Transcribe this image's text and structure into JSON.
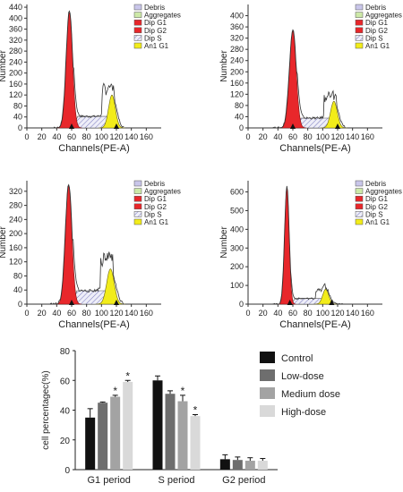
{
  "chart_data": [
    {
      "type": "area",
      "panel": "flow-cytometry-control",
      "xlabel": "Channels(PE-A)",
      "ylabel": "Number",
      "xlim": [
        0,
        180
      ],
      "ylim": [
        0,
        450
      ],
      "xticks": [
        0,
        20,
        40,
        60,
        80,
        100,
        120,
        140,
        160
      ],
      "yticks": [
        0,
        40,
        80,
        120,
        160,
        200,
        240,
        280,
        320,
        360,
        400,
        440
      ],
      "markers": [
        60,
        120
      ],
      "legend": [
        {
          "label": "Debris",
          "color": "#c9c6ea"
        },
        {
          "label": "Aggregates",
          "color": "#cde9a8"
        },
        {
          "label": "Dip G1",
          "color": "#e8272b"
        },
        {
          "label": "Dip G2",
          "color": "#e8272b"
        },
        {
          "label": "Dip S",
          "color": "#d8d8f0"
        },
        {
          "label": "An1 G1",
          "color": "#f2ec1a"
        }
      ],
      "g1": {
        "center": 57,
        "sigma": 4.2,
        "peak": 420
      },
      "s_phase": {
        "start": 62,
        "end": 114,
        "level": 42
      },
      "g2": {
        "center": 114,
        "sigma": 4.5,
        "peak": 120
      },
      "envelope_max": 160
    },
    {
      "type": "area",
      "panel": "flow-cytometry-low-dose",
      "xlabel": "Channels(PE-A)",
      "ylabel": "Number",
      "xlim": [
        0,
        180
      ],
      "ylim": [
        0,
        440
      ],
      "xticks": [
        0,
        20,
        40,
        60,
        80,
        100,
        120,
        140,
        160
      ],
      "yticks": [
        0,
        40,
        80,
        120,
        160,
        200,
        240,
        280,
        320,
        360,
        400
      ],
      "markers": [
        60,
        120
      ],
      "legend": [
        {
          "label": "Debris",
          "color": "#c9c6ea"
        },
        {
          "label": "Aggregates",
          "color": "#cde9a8"
        },
        {
          "label": "Dip G1",
          "color": "#e8272b"
        },
        {
          "label": "Dip G2",
          "color": "#e8272b"
        },
        {
          "label": "Dip S",
          "color": "#d8d8f0"
        },
        {
          "label": "An1 G1",
          "color": "#f2ec1a"
        }
      ],
      "g1": {
        "center": 60,
        "sigma": 4.5,
        "peak": 345
      },
      "s_phase": {
        "start": 65,
        "end": 115,
        "level": 35
      },
      "g2": {
        "center": 115,
        "sigma": 4.5,
        "peak": 95
      },
      "envelope_max": 125
    },
    {
      "type": "area",
      "panel": "flow-cytometry-medium-dose",
      "xlabel": "Channels(PE-A)",
      "ylabel": "Number",
      "xlim": [
        0,
        180
      ],
      "ylim": [
        0,
        350
      ],
      "xticks": [
        0,
        20,
        40,
        60,
        80,
        100,
        120,
        140,
        160
      ],
      "yticks": [
        0,
        40,
        80,
        120,
        160,
        200,
        240,
        280,
        320
      ],
      "markers": [
        60,
        120
      ],
      "legend": [
        {
          "label": "Debris",
          "color": "#c9c6ea"
        },
        {
          "label": "Aggregates",
          "color": "#cde9a8"
        },
        {
          "label": "Dip G1",
          "color": "#e8272b"
        },
        {
          "label": "Dip G2",
          "color": "#e8272b"
        },
        {
          "label": "Dip S",
          "color": "#d8d8f0"
        },
        {
          "label": "An1 G1",
          "color": "#f2ec1a"
        }
      ],
      "g1": {
        "center": 56,
        "sigma": 4.3,
        "peak": 335
      },
      "s_phase": {
        "start": 61,
        "end": 112,
        "level": 38
      },
      "g2": {
        "center": 112,
        "sigma": 5,
        "peak": 100
      },
      "envelope_max": 145
    },
    {
      "type": "area",
      "panel": "flow-cytometry-high-dose",
      "xlabel": "Channels(PE-A)",
      "ylabel": "Number",
      "xlim": [
        0,
        180
      ],
      "ylim": [
        0,
        660
      ],
      "xticks": [
        0,
        20,
        40,
        60,
        80,
        100,
        120,
        140,
        160
      ],
      "yticks": [
        0,
        100,
        200,
        300,
        400,
        500,
        600
      ],
      "markers": [
        56,
        112
      ],
      "legend": [
        {
          "label": "Debris",
          "color": "#c9c6ea"
        },
        {
          "label": "Aggregates",
          "color": "#cde9a8"
        },
        {
          "label": "Dip G1",
          "color": "#e8272b"
        },
        {
          "label": "Dip G2",
          "color": "#e8272b"
        },
        {
          "label": "Dip S",
          "color": "#d8d8f0"
        },
        {
          "label": "An1 G1",
          "color": "#f2ec1a"
        }
      ],
      "g1": {
        "center": 52,
        "sigma": 3,
        "peak": 620
      },
      "s_phase": {
        "start": 57,
        "end": 104,
        "level": 30
      },
      "g2": {
        "center": 104,
        "sigma": 4,
        "peak": 80
      },
      "envelope_max": 85
    },
    {
      "type": "bar",
      "panel": "cell-cycle-summary",
      "ylabel": "cell percentagec(%)",
      "xlabel": "",
      "ylim": [
        0,
        80
      ],
      "yticks": [
        0,
        20,
        40,
        60,
        80
      ],
      "categories": [
        "G1 period",
        "S period",
        "G2 period"
      ],
      "series": [
        {
          "name": "Control",
          "color": "#111111",
          "values": [
            35,
            60,
            7
          ],
          "errors": [
            6,
            3,
            3
          ],
          "sig": [
            false,
            false,
            false
          ]
        },
        {
          "name": "Low-dose",
          "color": "#6e6e6e",
          "values": [
            45,
            51,
            6.5
          ],
          "errors": [
            0.5,
            2,
            2
          ],
          "sig": [
            false,
            false,
            false
          ]
        },
        {
          "name": "Medium dose",
          "color": "#a3a3a3",
          "values": [
            49,
            46,
            6
          ],
          "errors": [
            1,
            4,
            2
          ],
          "sig": [
            true,
            true,
            false
          ]
        },
        {
          "name": "High-dose",
          "color": "#d9d9d9",
          "values": [
            59,
            36,
            6
          ],
          "errors": [
            1,
            1,
            1.5
          ],
          "sig": [
            true,
            true,
            false
          ]
        }
      ],
      "significance_mark": "*",
      "legend_position": "right"
    }
  ]
}
